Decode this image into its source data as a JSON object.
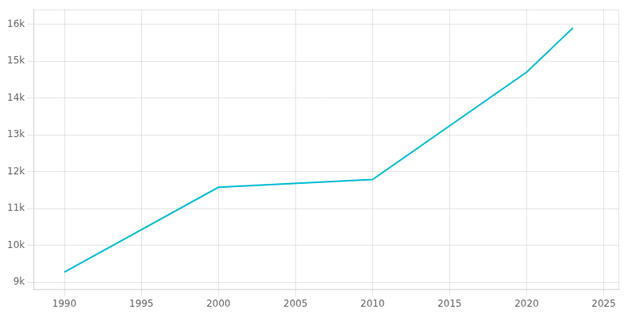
{
  "chart_data": {
    "type": "line",
    "x": [
      1990,
      2000,
      2010,
      2020,
      2021,
      2022,
      2023
    ],
    "values": [
      9280,
      11580,
      11790,
      14700,
      15100,
      15500,
      15900
    ],
    "color": "#00BCD4",
    "xlim": [
      1988,
      2026
    ],
    "ylim": [
      8800,
      16400
    ],
    "xticks": [
      1990,
      1995,
      2000,
      2005,
      2010,
      2015,
      2020,
      2025
    ],
    "yticks": [
      {
        "value": 9000,
        "label": "9k"
      },
      {
        "value": 10000,
        "label": "10k"
      },
      {
        "value": 11000,
        "label": "11k"
      },
      {
        "value": 12000,
        "label": "12k"
      },
      {
        "value": 13000,
        "label": "13k"
      },
      {
        "value": 14000,
        "label": "14k"
      },
      {
        "value": 15000,
        "label": "15k"
      },
      {
        "value": 16000,
        "label": "16k"
      }
    ],
    "grid": true
  }
}
